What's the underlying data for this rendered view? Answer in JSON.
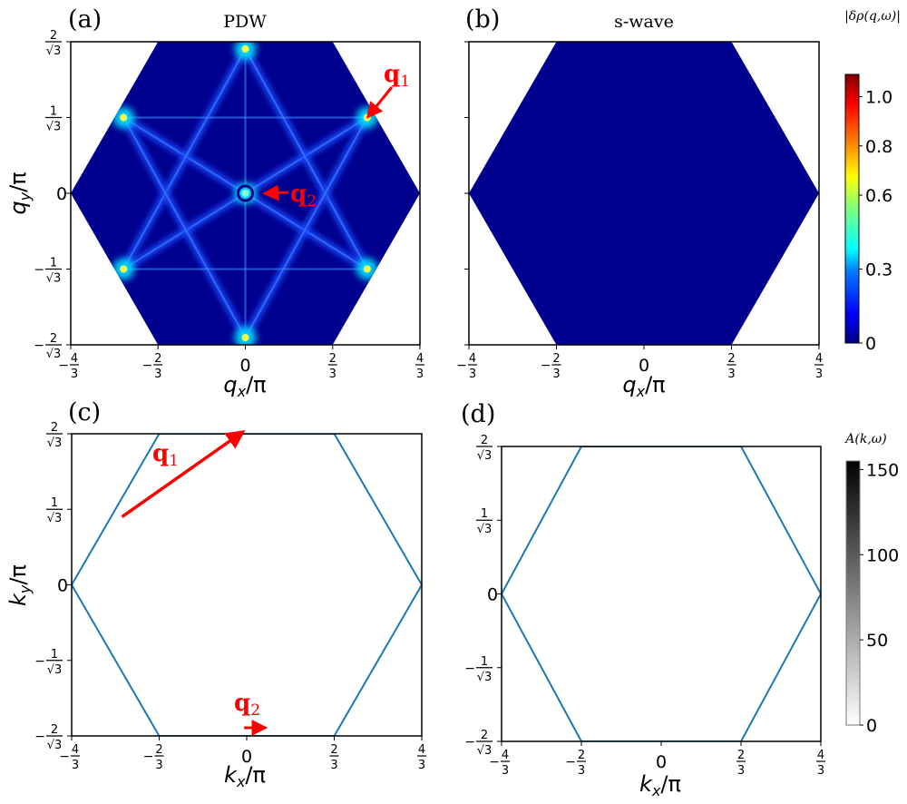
{
  "chart_data": [
    {
      "type": "heatmap",
      "panel": "(a)",
      "title": "PDW",
      "xlabel": {
        "main": "q",
        "sub": "x",
        "rest": "/π"
      },
      "ylabel": {
        "main": "q",
        "sub": "y",
        "rest": "/π"
      },
      "xlim": [
        -1.3333,
        1.3333
      ],
      "ylim": [
        -1.1547,
        1.1547
      ],
      "xticks": {
        "values": [
          -1.3333,
          -0.6667,
          0,
          0.6667,
          1.3333
        ],
        "labels": [
          "−4/3",
          "−2/3",
          "0",
          "2/3",
          "4/3"
        ]
      },
      "yticks": {
        "values": [
          -1.1547,
          -0.5774,
          0,
          0.5774,
          1.1547
        ],
        "labels": [
          "−2/√3",
          "−1/√3",
          "0",
          "1/√3",
          "2/√3"
        ]
      },
      "hexagon": [
        [
          1.3333,
          0
        ],
        [
          0.6667,
          1.1547
        ],
        [
          -0.6667,
          1.1547
        ],
        [
          -1.3333,
          0
        ],
        [
          -0.6667,
          -1.1547
        ],
        [
          0.6667,
          -1.1547
        ]
      ],
      "background_value": 0.05,
      "hot_spots": [
        {
          "x": 0,
          "y": 1.1,
          "value": 0.8
        },
        {
          "x": 0,
          "y": -1.1,
          "value": 0.8
        },
        {
          "x": 0.93,
          "y": 0.577,
          "value": 0.9
        },
        {
          "x": -0.93,
          "y": 0.577,
          "value": 0.9
        },
        {
          "x": 0.93,
          "y": -0.577,
          "value": 0.9
        },
        {
          "x": -0.93,
          "y": -0.577,
          "value": 0.9
        },
        {
          "x": 0,
          "y": 0,
          "value": 0.5
        }
      ],
      "annotations": [
        {
          "label": "q",
          "sub": "1",
          "arrow_to": [
            0.95,
            0.6
          ]
        },
        {
          "label": "q",
          "sub": "2",
          "arrow_to": [
            0.17,
            0
          ]
        }
      ]
    },
    {
      "type": "heatmap",
      "panel": "(b)",
      "title": "s-wave",
      "xlabel": {
        "main": "q",
        "sub": "x",
        "rest": "/π"
      },
      "xlim": [
        -1.3333,
        1.3333
      ],
      "ylim": [
        -1.1547,
        1.1547
      ],
      "xticks": {
        "values": [
          -1.3333,
          -0.6667,
          0,
          0.6667,
          1.3333
        ],
        "labels": [
          "−4/3",
          "−2/3",
          "0",
          "2/3",
          "4/3"
        ]
      },
      "hexagon": [
        [
          1.3333,
          0
        ],
        [
          0.6667,
          1.1547
        ],
        [
          -0.6667,
          1.1547
        ],
        [
          -1.3333,
          0
        ],
        [
          -0.6667,
          -1.1547
        ],
        [
          0.6667,
          -1.1547
        ]
      ],
      "background_value": 0.03,
      "colorbar": {
        "label": "|δρ(q,ω)|",
        "range": [
          0,
          1.09
        ],
        "ticks": [
          0,
          0.3,
          0.6,
          0.8,
          1.0
        ],
        "tick_labels": [
          "0",
          "0.3",
          "0.6",
          "0.8",
          "1.0"
        ],
        "colormap": "jet"
      }
    },
    {
      "type": "line",
      "panel": "(c)",
      "xlabel": {
        "main": "k",
        "sub": "x",
        "rest": "/π"
      },
      "ylabel": {
        "main": "k",
        "sub": "y",
        "rest": "/π"
      },
      "xlim": [
        -1.3333,
        1.3333
      ],
      "ylim": [
        -1.1547,
        1.1547
      ],
      "xticks": {
        "values": [
          -1.3333,
          -0.6667,
          0,
          0.6667,
          1.3333
        ],
        "labels": [
          "−4/3",
          "−2/3",
          "0",
          "2/3",
          "4/3"
        ]
      },
      "yticks": {
        "values": [
          -1.1547,
          -0.5774,
          0,
          0.5774,
          1.1547
        ],
        "labels": [
          "−2/√3",
          "−1/√3",
          "0",
          "1/√3",
          "2/√3"
        ]
      },
      "hexagon": [
        [
          1.3333,
          0
        ],
        [
          0.6667,
          1.1547
        ],
        [
          -0.6667,
          1.1547
        ],
        [
          -1.3333,
          0
        ],
        [
          -0.6667,
          -1.1547
        ],
        [
          0.6667,
          -1.1547
        ]
      ],
      "line_color": "#1f77b4",
      "annotations": [
        {
          "label": "q",
          "sub": "1",
          "arrow_from": [
            -0.95,
            0.52
          ],
          "arrow_to": [
            -0.05,
            1.1547
          ]
        },
        {
          "label": "q",
          "sub": "2",
          "arrow_from": [
            -0.02,
            -1.1
          ],
          "arrow_to": [
            0.12,
            -1.1
          ]
        }
      ]
    },
    {
      "type": "line",
      "panel": "(d)",
      "xlabel": {
        "main": "k",
        "sub": "x",
        "rest": "/π"
      },
      "xlim": [
        -1.3333,
        1.3333
      ],
      "ylim": [
        -1.1547,
        1.1547
      ],
      "xticks": {
        "values": [
          -1.3333,
          -0.6667,
          0,
          0.6667,
          1.3333
        ],
        "labels": [
          "−4/3",
          "−2/3",
          "0",
          "2/3",
          "4/3"
        ]
      },
      "yticks": {
        "values": [
          -1.1547,
          -0.5774,
          0,
          0.5774,
          1.1547
        ],
        "labels": [
          "−2/√3",
          "−1/√3",
          "0",
          "1/√3",
          "2/√3"
        ]
      },
      "hexagon": [
        [
          1.3333,
          0
        ],
        [
          0.6667,
          1.1547
        ],
        [
          -0.6667,
          1.1547
        ],
        [
          -1.3333,
          0
        ],
        [
          -0.6667,
          -1.1547
        ],
        [
          0.6667,
          -1.1547
        ]
      ],
      "line_color": "#1f77b4",
      "colorbar": {
        "label": "A(k,ω)",
        "range": [
          0,
          155
        ],
        "ticks": [
          0,
          50,
          100,
          150
        ],
        "tick_labels": [
          "0",
          "50",
          "100",
          "150"
        ],
        "colormap": "gray_r"
      }
    }
  ],
  "colors": {
    "annotation": "#ff0000",
    "hexagon_line": "#1f77b4",
    "heatmap_bg": "#00008f"
  }
}
